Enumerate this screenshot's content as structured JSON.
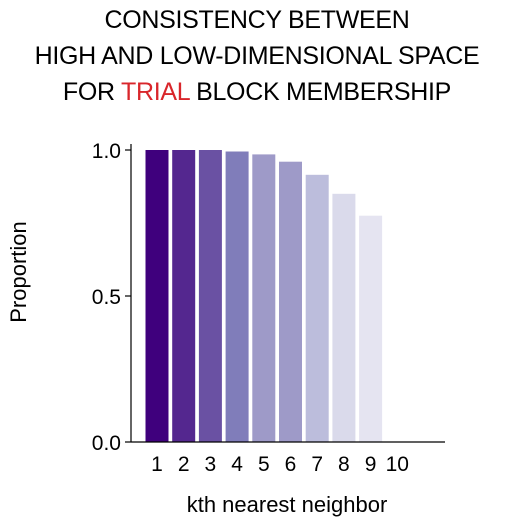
{
  "title": {
    "line1": "CONSISTENCY BETWEEN",
    "line2": "HIGH AND LOW-DIMENSIONAL SPACE",
    "line3_pre": "FOR ",
    "line3_highlight": "TRIAL",
    "line3_post": " BLOCK MEMBERSHIP",
    "highlight_color": "#d9262b"
  },
  "chart_data": {
    "type": "bar",
    "title": "CONSISTENCY BETWEEN HIGH AND LOW-DIMENSIONAL SPACE FOR TRIAL BLOCK MEMBERSHIP",
    "xlabel": "kth nearest neighbor",
    "ylabel": "Proportion",
    "categories": [
      "1",
      "2",
      "3",
      "4",
      "5",
      "6",
      "7",
      "8",
      "9",
      "10"
    ],
    "values": [
      1.0,
      1.0,
      1.0,
      0.995,
      0.985,
      0.96,
      0.915,
      0.85,
      0.775,
      0.0
    ],
    "ylim": [
      0,
      1.0
    ],
    "yticks": [
      "0.0",
      "0.5",
      "1.0"
    ],
    "grid": false,
    "colors": [
      "#3f007d",
      "#54278f",
      "#6a51a3",
      "#807dba",
      "#9e9ac8",
      "#9e9ac8",
      "#bcbddc",
      "#dadaeb",
      "#e5e4f1",
      "#efedf5"
    ]
  }
}
